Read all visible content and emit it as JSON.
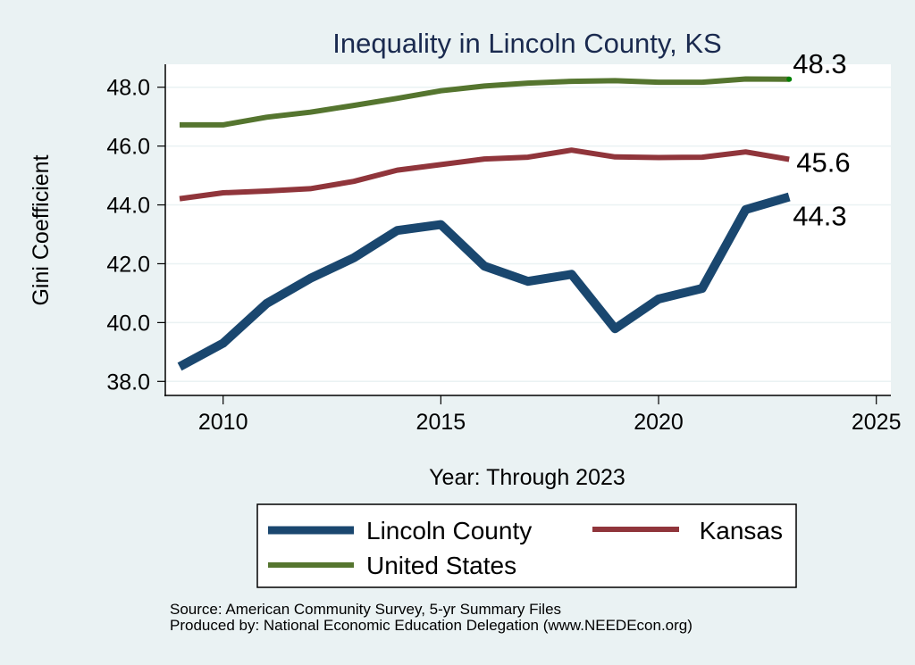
{
  "chart_data": {
    "type": "line",
    "title": "Inequality in Lincoln County, KS",
    "xlabel": "Year: Through 2023",
    "ylabel": "Gini Coefficient",
    "x": [
      2009,
      2010,
      2011,
      2012,
      2013,
      2014,
      2015,
      2016,
      2017,
      2018,
      2019,
      2020,
      2021,
      2022,
      2023
    ],
    "xlim": [
      2008.5,
      2025.3
    ],
    "ylim": [
      37.5,
      48.8
    ],
    "xticks": [
      2010,
      2015,
      2020,
      2025
    ],
    "xtick_labels": [
      "2010",
      "2015",
      "2020",
      "2025"
    ],
    "yticks": [
      38,
      40,
      42,
      44,
      46,
      48
    ],
    "ytick_labels": [
      "38.0",
      "40.0",
      "42.0",
      "44.0",
      "46.0",
      "48.0"
    ],
    "grid": true,
    "legend_position": "bottom",
    "series": [
      {
        "name": "Lincoln County",
        "color": "#1a476f",
        "values": [
          38.5,
          39.3,
          40.65,
          41.5,
          42.2,
          43.13,
          43.33,
          41.92,
          41.4,
          41.64,
          39.79,
          40.8,
          41.16,
          43.84,
          44.27
        ],
        "end_label": "44.3"
      },
      {
        "name": "Kansas",
        "color": "#90353b",
        "values": [
          44.21,
          44.41,
          44.47,
          44.55,
          44.8,
          45.18,
          45.37,
          45.56,
          45.62,
          45.86,
          45.63,
          45.61,
          45.62,
          45.8,
          45.55
        ],
        "end_label": "45.6"
      },
      {
        "name": "United States",
        "color": "#55752f",
        "values": [
          46.72,
          46.72,
          46.98,
          47.15,
          47.38,
          47.62,
          47.88,
          48.04,
          48.14,
          48.2,
          48.22,
          48.17,
          48.17,
          48.28,
          48.27
        ],
        "end_label": "48.3"
      }
    ]
  },
  "legend": {
    "items": [
      "Lincoln County",
      "Kansas",
      "United States"
    ]
  },
  "footer": {
    "source": "Source: American Community Survey, 5-yr Summary Files",
    "producer": "Produced by: National Economic Education Delegation (www.NEEDEcon.org)"
  },
  "colors": {
    "background": "#eaf2f3",
    "plot_background": "#ffffff",
    "gridline": "#eaf2f3",
    "title": "#1a2a4f",
    "end_marker": "#008000"
  }
}
